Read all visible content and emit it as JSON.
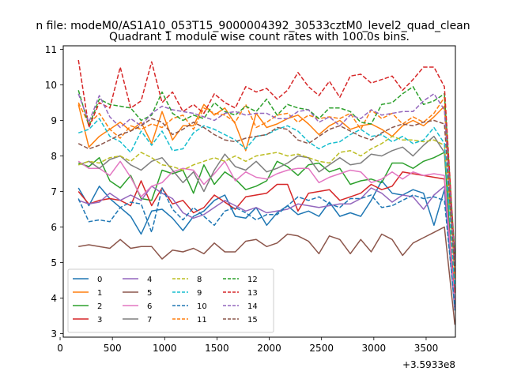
{
  "chart_data": {
    "type": "line",
    "suptitle": "n file: modeM0/AS1A10_053T15_9000004392_30533cztM0_level2_quad_clean",
    "title": "Quadrant 1 module wise count rates with 100.0s bins.",
    "xlabel": "",
    "ylabel": "",
    "x_offset_label": "+3.5933e8",
    "xlim": [
      30,
      3780
    ],
    "ylim": [
      2.9,
      11.1
    ],
    "xticks": [
      0,
      500,
      1000,
      1500,
      2000,
      2500,
      3000,
      3500
    ],
    "yticks": [
      3,
      4,
      5,
      6,
      7,
      8,
      9,
      10,
      11
    ],
    "grid": false,
    "legend_position": "lower-left",
    "legend_columns": 4,
    "x": [
      175,
      275,
      375,
      475,
      575,
      675,
      775,
      875,
      975,
      1075,
      1175,
      1275,
      1375,
      1475,
      1575,
      1675,
      1775,
      1875,
      1975,
      2075,
      2175,
      2275,
      2375,
      2475,
      2575,
      2675,
      2775,
      2875,
      2975,
      3075,
      3175,
      3275,
      3375,
      3475,
      3575,
      3675,
      3775
    ],
    "series": [
      {
        "name": "0",
        "color": "#1f77b4",
        "dash": "solid",
        "values": [
          7.1,
          6.6,
          7.15,
          6.8,
          6.55,
          6.3,
          5.8,
          6.45,
          6.5,
          6.25,
          5.9,
          6.3,
          6.45,
          6.75,
          6.9,
          6.3,
          6.25,
          6.55,
          6.05,
          6.4,
          6.6,
          6.35,
          6.45,
          6.3,
          6.7,
          6.3,
          6.4,
          6.3,
          6.75,
          7.3,
          6.95,
          6.9,
          7.05,
          6.95,
          6.05,
          7.05,
          3.65
        ]
      },
      {
        "name": "1",
        "color": "#ff7f0e",
        "dash": "solid",
        "values": [
          9.45,
          8.25,
          8.55,
          8.75,
          8.95,
          8.7,
          8.95,
          8.35,
          9.25,
          8.45,
          8.85,
          8.85,
          9.45,
          9.15,
          9.35,
          8.9,
          8.15,
          9.2,
          8.8,
          8.9,
          9.05,
          9.15,
          8.9,
          8.6,
          8.85,
          9.0,
          8.75,
          8.85,
          8.9,
          8.75,
          8.55,
          8.85,
          9.0,
          8.85,
          9.1,
          9.4,
          4.55
        ]
      },
      {
        "name": "2",
        "color": "#2ca02c",
        "dash": "solid",
        "values": [
          7.8,
          7.7,
          7.95,
          7.3,
          7.1,
          7.45,
          6.8,
          6.75,
          7.6,
          7.5,
          7.6,
          6.95,
          7.75,
          7.2,
          7.55,
          7.35,
          7.05,
          7.15,
          7.3,
          7.85,
          7.7,
          7.45,
          7.75,
          7.8,
          7.55,
          7.65,
          7.2,
          7.3,
          7.35,
          7.25,
          7.8,
          7.8,
          7.65,
          7.85,
          7.95,
          8.1,
          3.75
        ]
      },
      {
        "name": "3",
        "color": "#d62728",
        "dash": "solid",
        "values": [
          7.0,
          6.65,
          6.75,
          6.8,
          6.75,
          6.6,
          7.3,
          6.6,
          7.1,
          6.65,
          6.75,
          6.4,
          6.55,
          6.9,
          6.7,
          6.5,
          6.85,
          6.9,
          6.95,
          7.2,
          7.2,
          6.45,
          6.95,
          7.0,
          7.05,
          6.75,
          6.85,
          6.95,
          7.2,
          7.05,
          7.15,
          7.55,
          7.5,
          7.45,
          7.4,
          7.35,
          4.15
        ]
      },
      {
        "name": "4",
        "color": "#9467bd",
        "dash": "solid",
        "values": [
          6.75,
          6.65,
          6.7,
          6.95,
          6.75,
          6.9,
          6.75,
          7.15,
          6.95,
          6.8,
          6.4,
          6.25,
          6.35,
          6.55,
          6.75,
          6.6,
          6.45,
          6.55,
          6.4,
          6.45,
          6.5,
          6.65,
          6.6,
          6.55,
          6.6,
          6.65,
          6.65,
          6.8,
          7.1,
          6.95,
          6.7,
          6.9,
          6.85,
          6.5,
          6.9,
          7.15,
          3.7
        ]
      },
      {
        "name": "5",
        "color": "#8c564b",
        "dash": "solid",
        "values": [
          5.45,
          5.5,
          5.45,
          5.4,
          5.65,
          5.4,
          5.45,
          5.45,
          5.1,
          5.35,
          5.3,
          5.4,
          5.25,
          5.55,
          5.3,
          5.3,
          5.6,
          5.65,
          5.45,
          5.55,
          5.8,
          5.75,
          5.6,
          5.25,
          5.75,
          5.65,
          5.25,
          5.65,
          5.3,
          5.8,
          5.65,
          5.2,
          5.55,
          5.7,
          5.85,
          6.0,
          3.25
        ]
      },
      {
        "name": "6",
        "color": "#e377c2",
        "dash": "solid",
        "values": [
          7.85,
          7.65,
          7.65,
          7.45,
          7.85,
          7.4,
          6.85,
          7.15,
          7.25,
          7.55,
          7.65,
          7.6,
          7.2,
          7.5,
          7.85,
          7.3,
          7.55,
          7.4,
          7.35,
          7.5,
          7.6,
          7.65,
          7.65,
          7.25,
          7.4,
          7.5,
          7.6,
          7.55,
          7.25,
          7.35,
          7.55,
          7.35,
          7.55,
          7.45,
          7.5,
          7.45,
          3.85
        ]
      },
      {
        "name": "7",
        "color": "#7f7f7f",
        "dash": "solid",
        "values": [
          7.75,
          7.85,
          7.65,
          7.9,
          8.0,
          7.75,
          7.6,
          7.85,
          7.95,
          7.6,
          7.25,
          7.55,
          7.0,
          7.6,
          8.05,
          7.7,
          7.6,
          7.85,
          7.55,
          7.65,
          7.8,
          8.0,
          7.95,
          7.55,
          7.75,
          7.95,
          7.75,
          7.8,
          8.05,
          8.0,
          8.15,
          8.25,
          8.0,
          8.3,
          8.55,
          8.1,
          5.0
        ]
      },
      {
        "name": "8",
        "color": "#bcbd22",
        "dash": "dashed",
        "values": [
          7.75,
          7.85,
          7.8,
          7.95,
          8.0,
          7.85,
          8.1,
          7.95,
          7.75,
          7.7,
          7.6,
          7.75,
          7.85,
          7.95,
          7.85,
          8.0,
          7.85,
          8.0,
          8.05,
          8.1,
          8.0,
          8.05,
          7.95,
          7.85,
          7.8,
          8.1,
          8.15,
          8.0,
          8.2,
          8.35,
          8.55,
          8.45,
          8.45,
          8.4,
          8.45,
          8.3,
          4.9
        ]
      },
      {
        "name": "9",
        "color": "#17becf",
        "dash": "dashed",
        "values": [
          8.65,
          8.75,
          9.05,
          8.55,
          8.4,
          8.1,
          8.7,
          8.3,
          8.7,
          8.15,
          8.2,
          8.65,
          8.85,
          8.75,
          8.6,
          8.45,
          8.2,
          8.55,
          8.6,
          8.75,
          8.85,
          8.7,
          8.4,
          8.2,
          8.35,
          8.4,
          8.6,
          8.75,
          8.55,
          8.6,
          8.4,
          8.55,
          8.35,
          8.45,
          8.8,
          8.35,
          4.3
        ]
      },
      {
        "name": "10",
        "color": "#1f77b4",
        "dash": "dashed",
        "values": [
          6.8,
          6.15,
          6.2,
          6.15,
          6.55,
          6.7,
          6.65,
          5.85,
          7.1,
          6.5,
          6.2,
          6.55,
          6.3,
          6.05,
          6.45,
          6.55,
          6.4,
          6.2,
          6.35,
          6.35,
          6.6,
          6.85,
          6.75,
          6.85,
          6.65,
          6.55,
          6.8,
          6.8,
          6.9,
          6.55,
          6.6,
          6.75,
          6.9,
          6.8,
          6.85,
          6.75,
          3.75
        ]
      },
      {
        "name": "11",
        "color": "#ff7f0e",
        "dash": "dashed",
        "values": [
          9.5,
          8.9,
          9.2,
          8.75,
          8.5,
          8.85,
          8.75,
          8.9,
          8.8,
          9.05,
          9.15,
          8.75,
          9.35,
          9.2,
          9.15,
          8.95,
          9.45,
          8.8,
          8.95,
          9.15,
          9.2,
          8.95,
          9.15,
          9.05,
          9.1,
          9.05,
          9.2,
          8.75,
          9.3,
          9.05,
          9.2,
          8.9,
          9.1,
          8.95,
          9.2,
          9.65,
          5.1
        ]
      },
      {
        "name": "12",
        "color": "#2ca02c",
        "dash": "dashed",
        "values": [
          9.85,
          8.85,
          9.6,
          9.45,
          9.4,
          9.35,
          9.0,
          9.15,
          9.8,
          9.2,
          9.0,
          9.15,
          9.05,
          9.5,
          9.25,
          9.15,
          9.4,
          9.25,
          9.6,
          9.15,
          9.45,
          9.35,
          9.3,
          9.05,
          9.35,
          9.35,
          9.25,
          8.95,
          8.9,
          9.45,
          9.5,
          9.75,
          9.95,
          9.45,
          9.55,
          9.75,
          5.2
        ]
      },
      {
        "name": "13",
        "color": "#d62728",
        "dash": "dashed",
        "values": [
          10.7,
          8.8,
          9.5,
          9.35,
          10.5,
          9.35,
          9.55,
          10.65,
          9.5,
          9.8,
          9.25,
          9.45,
          9.2,
          9.75,
          9.5,
          9.35,
          9.95,
          9.8,
          9.9,
          9.6,
          9.85,
          10.35,
          9.95,
          9.7,
          10.1,
          9.65,
          10.25,
          10.3,
          10.05,
          10.15,
          10.25,
          9.85,
          10.15,
          10.5,
          10.5,
          9.95,
          5.1
        ]
      },
      {
        "name": "14",
        "color": "#9467bd",
        "dash": "dashed",
        "values": [
          9.75,
          8.95,
          9.7,
          9.1,
          8.8,
          9.05,
          8.85,
          9.2,
          9.4,
          9.3,
          9.25,
          9.2,
          9.1,
          9.0,
          9.2,
          9.25,
          9.15,
          9.2,
          9.2,
          9.05,
          9.05,
          9.25,
          9.3,
          8.95,
          9.1,
          8.85,
          9.15,
          9.05,
          9.3,
          9.15,
          9.2,
          9.25,
          9.25,
          9.55,
          9.75,
          9.3,
          4.95
        ]
      },
      {
        "name": "15",
        "color": "#8c564b",
        "dash": "dashed",
        "values": [
          8.35,
          8.2,
          8.3,
          8.45,
          8.6,
          8.7,
          8.85,
          9.05,
          8.95,
          8.6,
          8.75,
          8.95,
          8.8,
          8.6,
          8.45,
          8.4,
          8.5,
          8.55,
          8.6,
          8.8,
          8.75,
          8.45,
          8.35,
          8.55,
          8.75,
          8.85,
          8.7,
          8.55,
          8.45,
          8.65,
          8.8,
          8.9,
          8.85,
          8.95,
          9.0,
          8.9,
          4.75
        ]
      }
    ]
  }
}
